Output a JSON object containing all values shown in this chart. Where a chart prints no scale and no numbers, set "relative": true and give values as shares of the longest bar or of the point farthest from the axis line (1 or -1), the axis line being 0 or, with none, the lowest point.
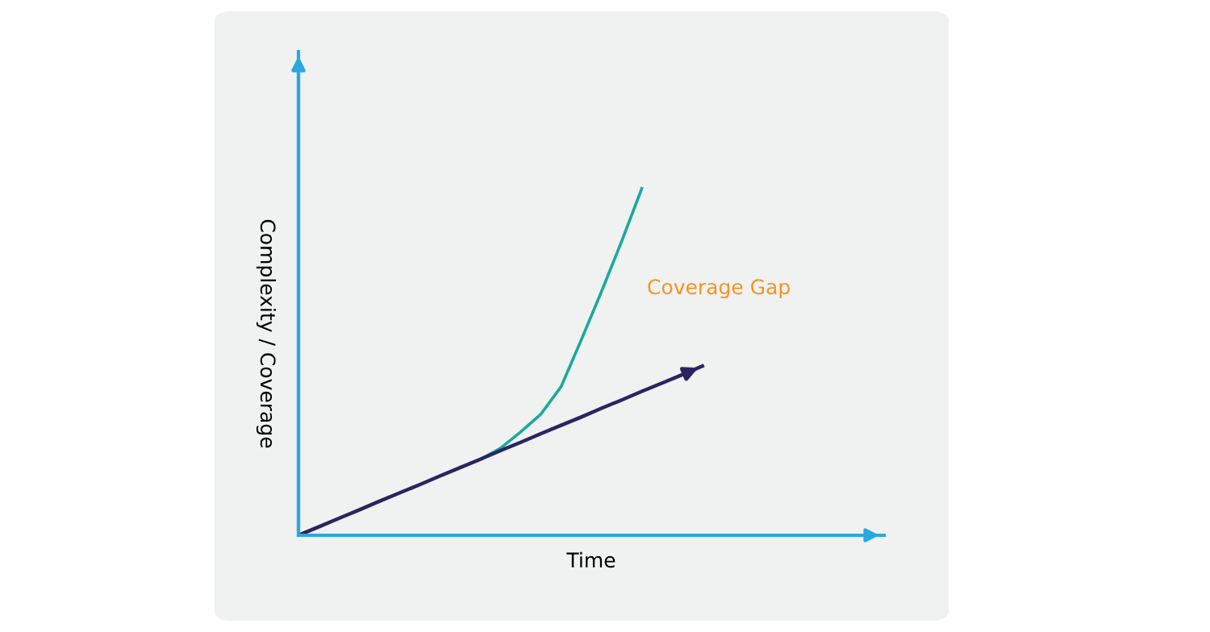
{
  "chart_data": {
    "type": "line",
    "relative": true,
    "xlabel": "Time",
    "ylabel": "Complexity / Coverage",
    "annotations": [
      "Coverage Gap"
    ],
    "categories": [
      null,
      null,
      null,
      null,
      null,
      null,
      null,
      null,
      null,
      null,
      null,
      null,
      null,
      null,
      null,
      null,
      null,
      null,
      null,
      null,
      null,
      null,
      null,
      null,
      null,
      null,
      null,
      null,
      null,
      null
    ],
    "series": [
      {
        "color": "#1aa99c",
        "values": [
          null,
          null,
          null,
          null,
          null,
          null,
          null,
          null,
          0.195,
          0.219,
          0.251,
          0.298,
          0.349,
          0.428,
          0.563,
          0.702,
          0.847,
          1.0,
          null,
          null,
          null,
          null,
          null,
          null,
          null,
          null,
          null,
          null,
          null,
          null
        ]
      },
      {
        "color": "#2a2560",
        "values": [
          0,
          0.024,
          0.049,
          0.073,
          0.098,
          0.122,
          0.146,
          0.171,
          0.195,
          0.219,
          0.244,
          0.268,
          0.293,
          0.317,
          0.341,
          0.366,
          0.39,
          0.415,
          0.439,
          0.463,
          0.488,
          null,
          null,
          null,
          null,
          null,
          null,
          null,
          null,
          null
        ]
      }
    ],
    "grid": false,
    "legend": false,
    "marker": "none",
    "line_style": "solid"
  }
}
